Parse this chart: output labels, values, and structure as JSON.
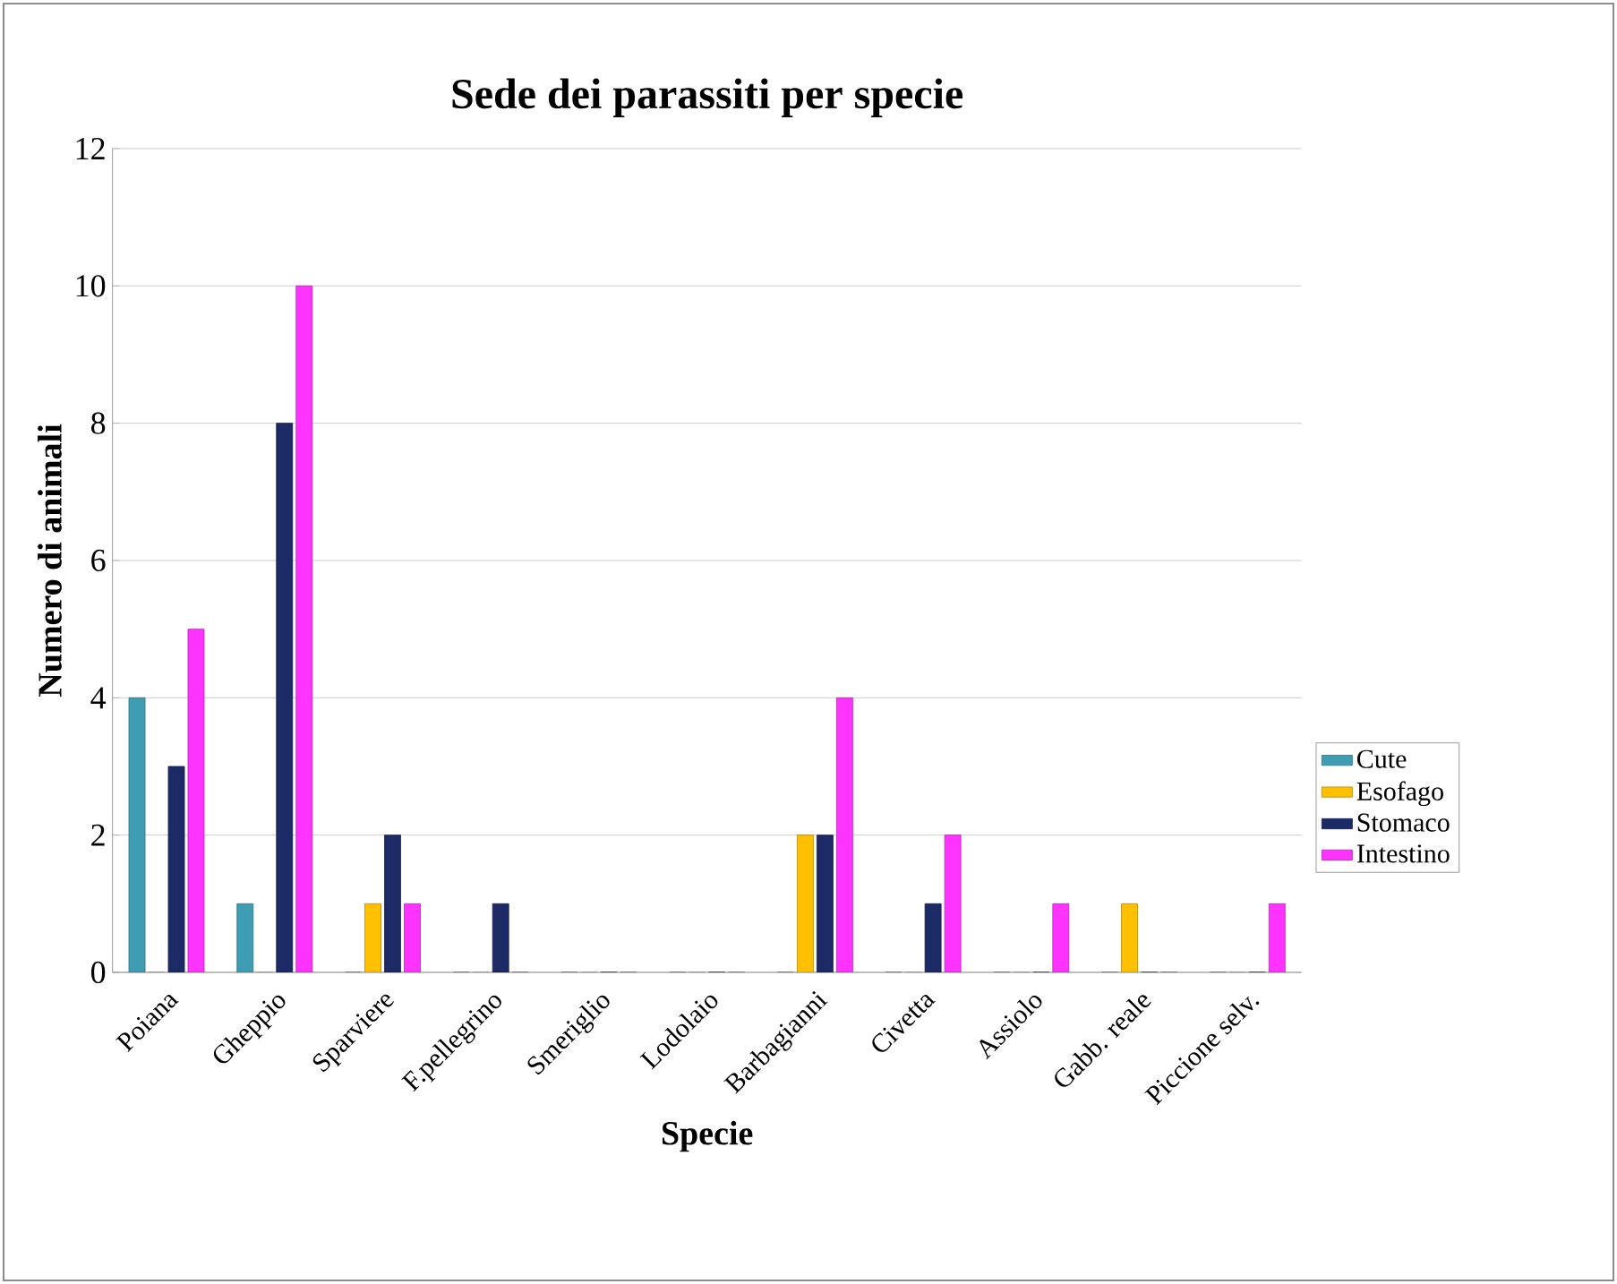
{
  "chart_data": {
    "type": "bar",
    "title": "Sede dei parassiti per specie",
    "xlabel": "Specie",
    "ylabel": "Numero di animali",
    "categories": [
      "Poiana",
      "Gheppio",
      "Sparviere",
      "F.pellegrino",
      "Smeriglio",
      "Lodolaio",
      "Barbagianni",
      "Civetta",
      "Assiolo",
      "Gabb. reale",
      "Piccione selv."
    ],
    "series": [
      {
        "name": "Cute",
        "color": "#3f9db3",
        "values": [
          4,
          1,
          0,
          0,
          0,
          0,
          0,
          0,
          0,
          0,
          0
        ]
      },
      {
        "name": "Esofago",
        "color": "#ffc000",
        "values": [
          0,
          0,
          1,
          0,
          0,
          0,
          2,
          0,
          0,
          1,
          0
        ]
      },
      {
        "name": "Stomaco",
        "color": "#1c2a66",
        "values": [
          3,
          8,
          2,
          1,
          0,
          0,
          2,
          1,
          0,
          0,
          0
        ]
      },
      {
        "name": "Intestino",
        "color": "#ff33ff",
        "values": [
          5,
          10,
          1,
          0,
          0,
          0,
          4,
          2,
          1,
          0,
          1
        ]
      }
    ],
    "ylim": [
      0,
      12
    ],
    "yticks": [
      0,
      2,
      4,
      6,
      8,
      10,
      12
    ],
    "grid": "y",
    "legend": "right"
  }
}
